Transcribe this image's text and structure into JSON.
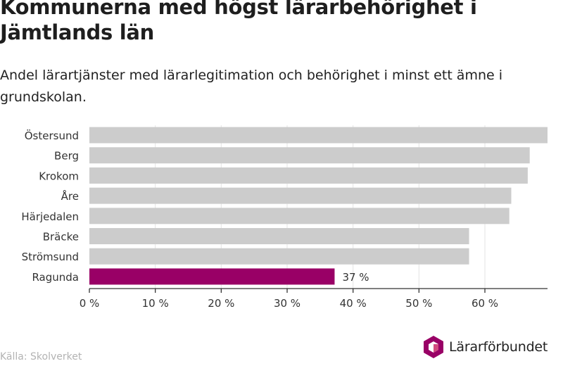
{
  "header": {
    "title": "Kommunerna med högst lärarbehörighet i Jämtlands län",
    "subtitle": "Andel lärartjänster med lärarlegitimation och behörighet i minst ett ämne i grundskolan."
  },
  "footer": {
    "source": "Källa: Skolverket",
    "logo_text": "Lärarförbundet"
  },
  "colors": {
    "bar_default": "#cccccc",
    "bar_highlight": "#990066",
    "logo_primary": "#990066",
    "logo_secondary": "#d14b7f"
  },
  "icons": {
    "logo": "hexagon-cube-logo-icon"
  },
  "chart_data": {
    "type": "bar",
    "orientation": "horizontal",
    "categories": [
      "Östersund",
      "Berg",
      "Krokom",
      "Åre",
      "Härjedalen",
      "Bräcke",
      "Strömsund",
      "Ragunda"
    ],
    "values": [
      69.5,
      66.8,
      66.5,
      64.0,
      63.7,
      57.6,
      57.6,
      37.2
    ],
    "highlight": "Ragunda",
    "data_labels": [
      {
        "category": "Ragunda",
        "text": "37 %"
      }
    ],
    "xlim": [
      0,
      69.5
    ],
    "x_ticks": [
      0,
      10,
      20,
      30,
      40,
      50,
      60
    ],
    "x_tick_labels": [
      "0 %",
      "10 %",
      "20 %",
      "30 %",
      "40 %",
      "50 %",
      "60 %"
    ],
    "xlabel": "",
    "ylabel": "",
    "grid": true
  }
}
